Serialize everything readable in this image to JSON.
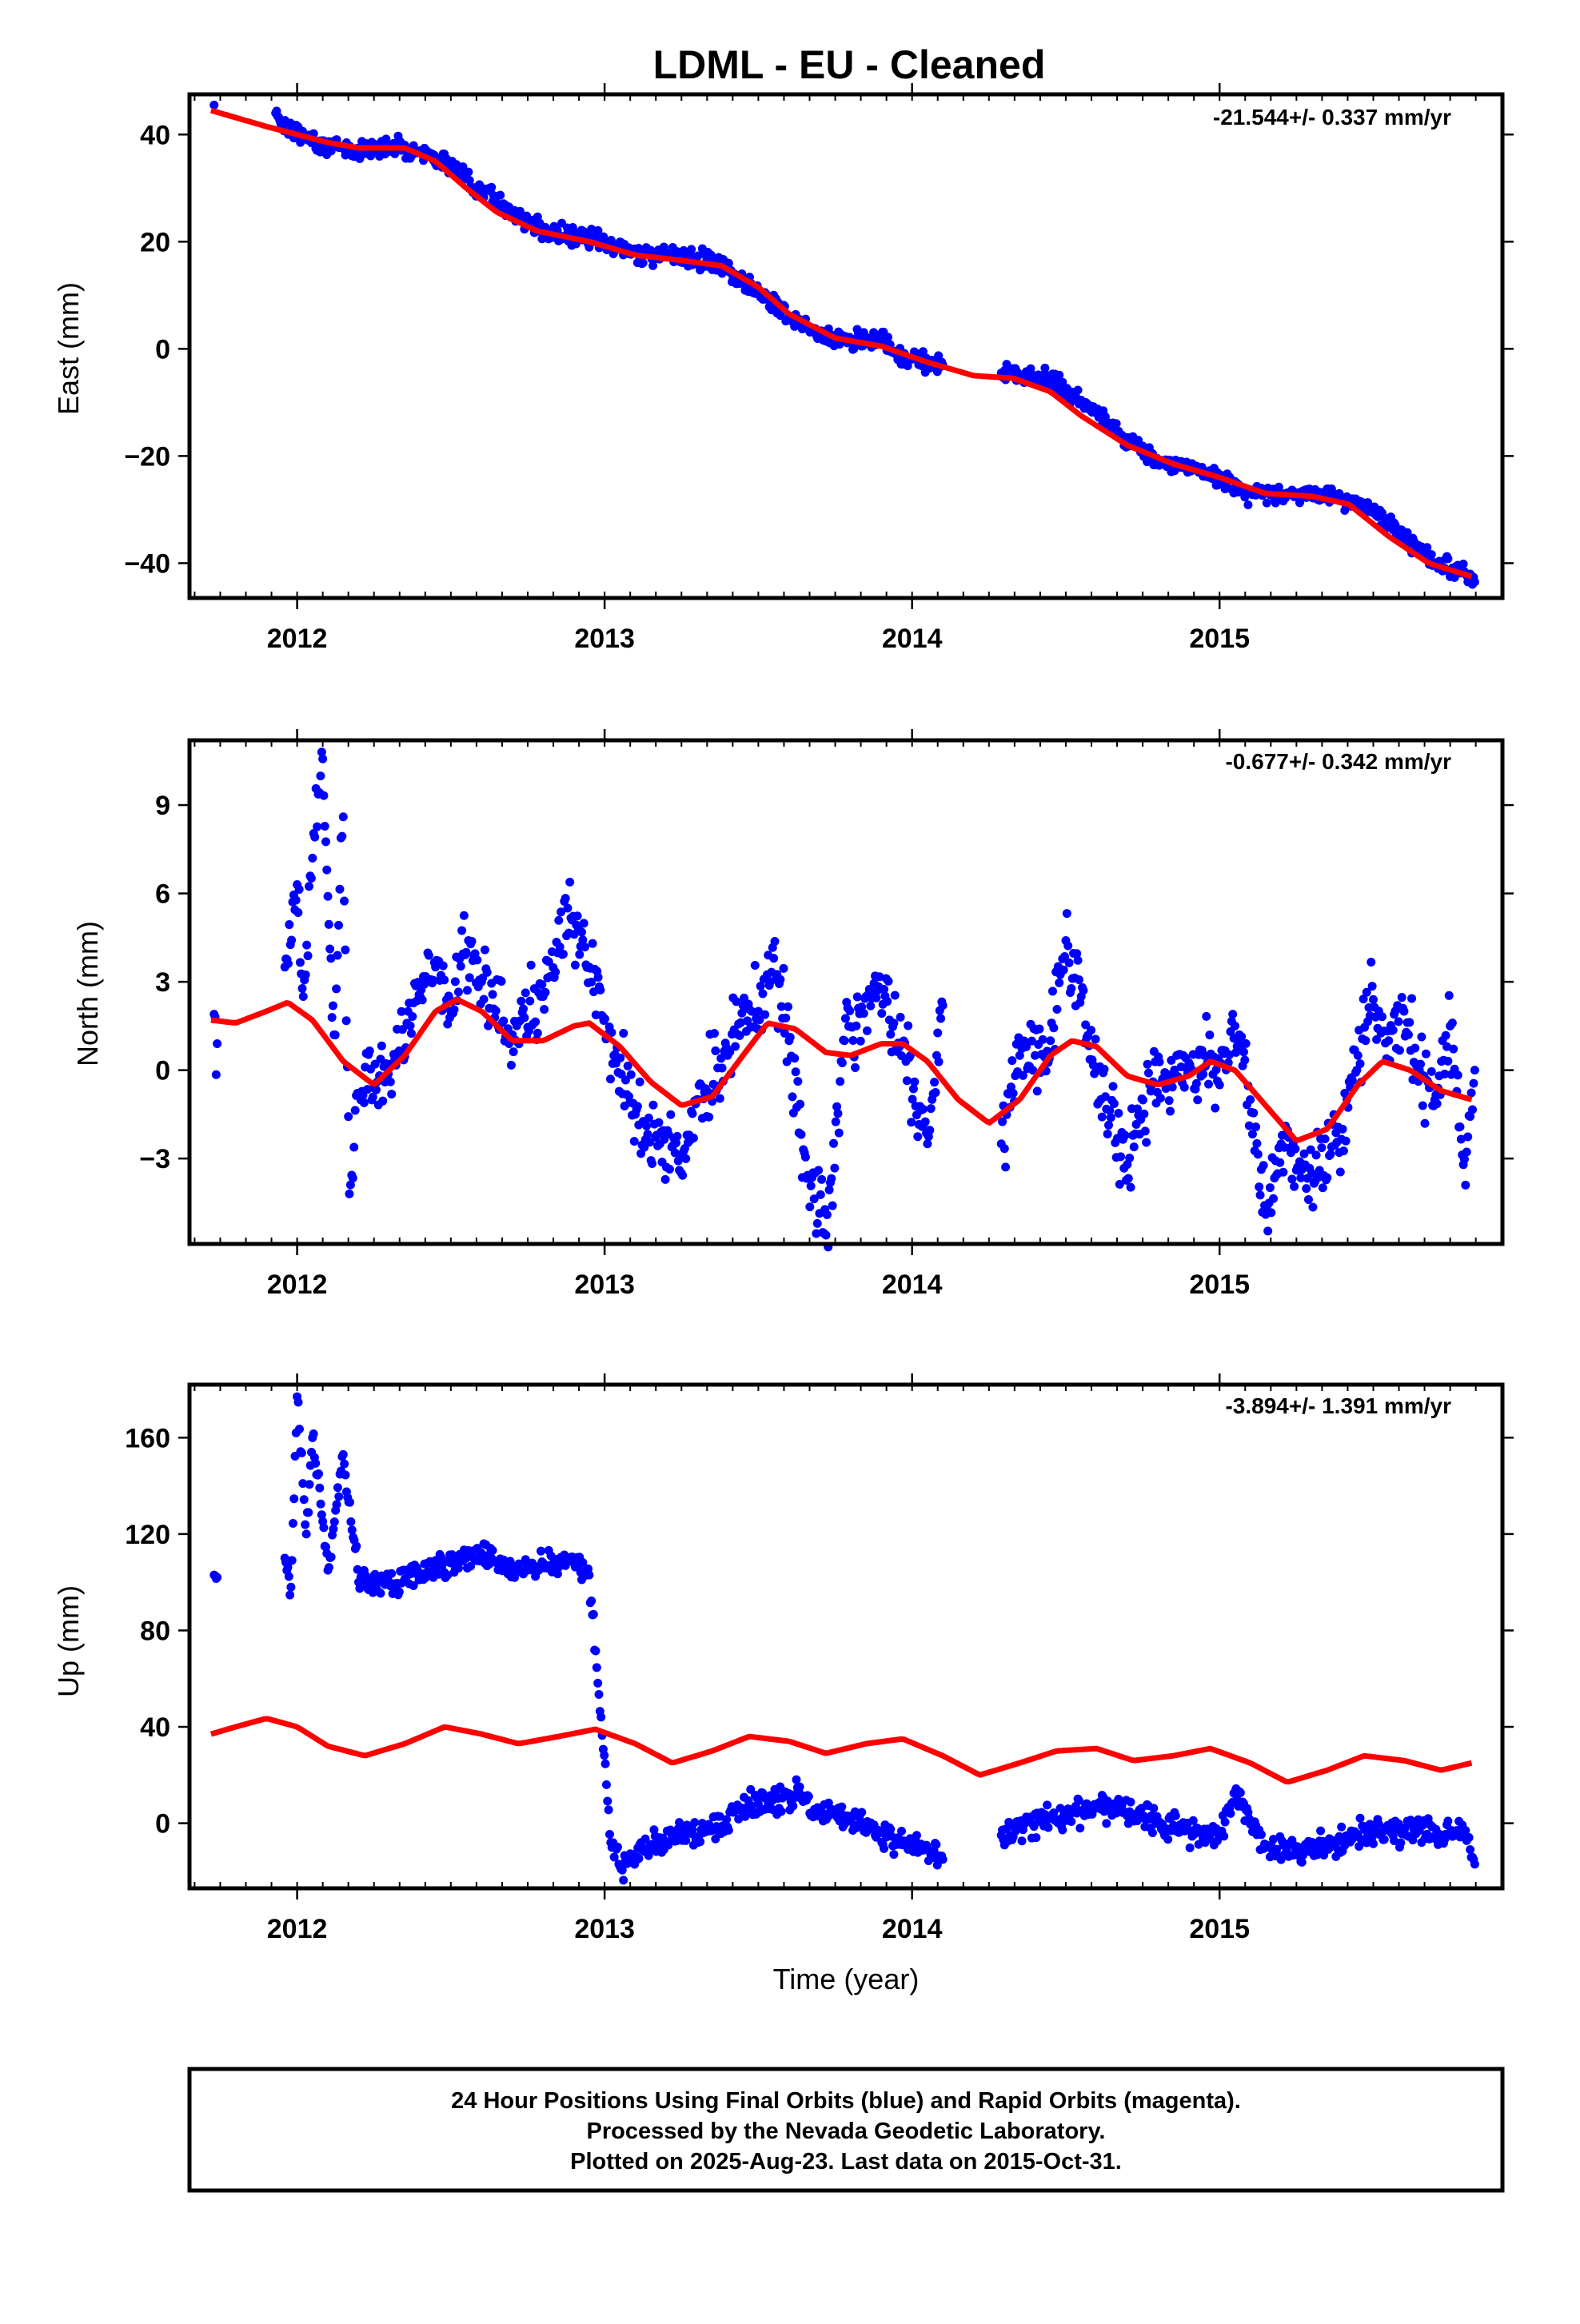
{
  "title": "LDML  - EU - Cleaned",
  "xlabel": "Time (year)",
  "footer": {
    "line1": "24 Hour Positions Using Final Orbits (blue) and Rapid Orbits (magenta).",
    "line2": "Processed by the Nevada Geodetic Laboratory.",
    "line3": "Plotted on 2025-Aug-23. Last data on 2015-Oct-31."
  },
  "colors": {
    "final_orbits": "#0000ff",
    "model": "#ff0000",
    "frame": "#000000"
  },
  "chart_data": [
    {
      "type": "scatter",
      "ylabel": "East (mm)",
      "rate": "-21.544+/- 0.337 mm/yr",
      "xlim": [
        2011.65,
        2015.92
      ],
      "ylim": [
        -46.5,
        47.5
      ],
      "xticks": [
        "2012",
        "2013",
        "2014",
        "2015"
      ],
      "yticks": [
        "40",
        "20",
        "0",
        "−20",
        "−40"
      ],
      "model": {
        "x": [
          2011.72,
          2011.9,
          2012.0,
          2012.1,
          2012.2,
          2012.35,
          2012.45,
          2012.55,
          2012.65,
          2012.78,
          2012.95,
          2013.1,
          2013.25,
          2013.38,
          2013.5,
          2013.6,
          2013.75,
          2013.9,
          2014.05,
          2014.2,
          2014.33,
          2014.45,
          2014.55,
          2014.7,
          2014.85,
          2015.0,
          2015.15,
          2015.3,
          2015.42,
          2015.55,
          2015.68,
          2015.82
        ],
        "y": [
          44.5,
          41.5,
          40.0,
          38.5,
          37.5,
          37.5,
          35.0,
          30.0,
          25.5,
          22.0,
          20.0,
          17.5,
          16.5,
          15.5,
          11.5,
          6.5,
          2.0,
          0.5,
          -2.5,
          -5.0,
          -5.5,
          -8.0,
          -12.5,
          -18.0,
          -21.5,
          -24.0,
          -27.0,
          -27.5,
          -29.0,
          -35.0,
          -40.0,
          -42.5
        ]
      },
      "series": [
        {
          "name": "Final Orbits",
          "x": [
            2011.73,
            2011.93,
            2011.95,
            2012.0,
            2012.05,
            2012.1,
            2012.2,
            2012.3,
            2012.4,
            2012.5,
            2012.6,
            2012.7,
            2012.8,
            2012.9,
            2013.0,
            2013.1,
            2013.2,
            2013.3,
            2013.4,
            2013.5,
            2013.6,
            2013.7,
            2013.8,
            2013.9,
            2013.95,
            2014.05,
            2014.1,
            2014.29,
            2014.35,
            2014.45,
            2014.5,
            2014.6,
            2014.7,
            2014.8,
            2014.9,
            2015.0,
            2015.1,
            2015.2,
            2015.3,
            2015.4,
            2015.5,
            2015.6,
            2015.7,
            2015.8,
            2015.83
          ],
          "y": [
            45.5,
            44.0,
            42.5,
            40.0,
            39.0,
            38.0,
            37.0,
            38.0,
            37.0,
            34.0,
            30.0,
            25.5,
            22.0,
            21.0,
            19.5,
            18.0,
            17.5,
            17.0,
            15.0,
            11.0,
            6.0,
            2.5,
            1.5,
            2.0,
            -1.0,
            -2.5,
            -3.0,
            -4.5,
            -5.0,
            -6.0,
            -8.0,
            -12.0,
            -17.0,
            -21.0,
            -22.0,
            -24.0,
            -27.0,
            -27.0,
            -27.0,
            -28.0,
            -30.0,
            -35.0,
            -40.0,
            -42.0,
            -43.5
          ]
        }
      ]
    },
    {
      "type": "scatter",
      "ylabel": "North (mm)",
      "rate": "-0.677+/- 0.342 mm/yr",
      "xlim": [
        2011.65,
        2015.92
      ],
      "ylim": [
        -5.9,
        11.2
      ],
      "xticks": [
        "2012",
        "2013",
        "2014",
        "2015"
      ],
      "yticks": [
        "9",
        "6",
        "3",
        "0",
        "−3"
      ],
      "model": {
        "x": [
          2011.72,
          2011.8,
          2011.9,
          2011.97,
          2012.05,
          2012.15,
          2012.25,
          2012.35,
          2012.45,
          2012.52,
          2012.6,
          2012.7,
          2012.8,
          2012.9,
          2012.95,
          2013.05,
          2013.15,
          2013.25,
          2013.35,
          2013.45,
          2013.53,
          2013.62,
          2013.72,
          2013.8,
          2013.9,
          2013.97,
          2014.05,
          2014.15,
          2014.25,
          2014.35,
          2014.45,
          2014.52,
          2014.6,
          2014.7,
          2014.8,
          2014.9,
          2014.97,
          2015.05,
          2015.15,
          2015.25,
          2015.35,
          2015.45,
          2015.53,
          2015.62,
          2015.72,
          2015.82
        ],
        "y": [
          1.7,
          1.6,
          2.0,
          2.3,
          1.7,
          0.3,
          -0.5,
          0.5,
          2.0,
          2.4,
          2.0,
          1.0,
          1.0,
          1.5,
          1.6,
          0.8,
          -0.4,
          -1.2,
          -0.9,
          0.5,
          1.6,
          1.4,
          0.6,
          0.5,
          0.9,
          0.9,
          0.3,
          -1.0,
          -1.8,
          -1.0,
          0.5,
          1.0,
          0.8,
          -0.2,
          -0.5,
          -0.2,
          0.3,
          0.0,
          -1.2,
          -2.4,
          -2.0,
          -0.5,
          0.3,
          0.0,
          -0.7,
          -1.0
        ]
      },
      "series": [
        {
          "name": "Final Orbits",
          "x": [
            2011.73,
            2011.74,
            2011.96,
            2012.0,
            2012.02,
            2012.05,
            2012.08,
            2012.1,
            2012.12,
            2012.15,
            2012.17,
            2012.2,
            2012.3,
            2012.4,
            2012.45,
            2012.5,
            2012.55,
            2012.6,
            2012.7,
            2012.8,
            2012.88,
            2012.95,
            2013.03,
            2013.1,
            2013.18,
            2013.25,
            2013.3,
            2013.4,
            2013.45,
            2013.5,
            2013.55,
            2013.6,
            2013.65,
            2013.72,
            2013.78,
            2013.85,
            2013.88,
            2013.98,
            2014.05,
            2014.08,
            2014.1,
            2014.29,
            2014.35,
            2014.45,
            2014.5,
            2014.55,
            2014.6,
            2014.7,
            2014.78,
            2014.85,
            2014.95,
            2015.0,
            2015.05,
            2015.1,
            2015.15,
            2015.2,
            2015.3,
            2015.4,
            2015.45,
            2015.5,
            2015.55,
            2015.6,
            2015.65,
            2015.7,
            2015.75,
            2015.8,
            2015.83
          ],
          "y": [
            1.9,
            0.9,
            3.5,
            6.3,
            2.5,
            7.2,
            10.8,
            5.9,
            1.2,
            8.6,
            -4.2,
            -0.8,
            0.2,
            2.5,
            3.5,
            2.0,
            4.0,
            3.0,
            1.2,
            2.5,
            5.5,
            3.5,
            0.5,
            -1.5,
            -2.5,
            -3.5,
            -1.0,
            0.5,
            2.2,
            2.0,
            3.8,
            1.0,
            -2.8,
            -5.6,
            1.0,
            2.5,
            3.2,
            0.3,
            -2.5,
            0.5,
            2.2,
            -2.5,
            0.5,
            1.0,
            4.4,
            2.5,
            0.0,
            -3.2,
            -0.5,
            -0.3,
            0.5,
            -0.5,
            1.5,
            -1.0,
            -4.9,
            -2.5,
            -3.5,
            -2.0,
            0.5,
            2.4,
            1.0,
            2.0,
            0.0,
            -1.0,
            1.5,
            -3.9,
            0.0
          ]
        }
      ]
    },
    {
      "type": "scatter",
      "ylabel": "Up (mm)",
      "rate": "-3.894+/- 1.391 mm/yr",
      "xlim": [
        2011.65,
        2015.92
      ],
      "ylim": [
        -27,
        182
      ],
      "xticks": [
        "2012",
        "2013",
        "2014",
        "2015"
      ],
      "yticks": [
        "160",
        "120",
        "80",
        "40",
        "0"
      ],
      "model": {
        "x": [
          2011.72,
          2011.8,
          2011.9,
          2012.0,
          2012.1,
          2012.22,
          2012.35,
          2012.48,
          2012.6,
          2012.72,
          2012.85,
          2012.97,
          2013.1,
          2013.22,
          2013.35,
          2013.47,
          2013.6,
          2013.72,
          2013.85,
          2013.97,
          2014.1,
          2014.22,
          2014.35,
          2014.47,
          2014.6,
          2014.72,
          2014.85,
          2014.97,
          2015.1,
          2015.22,
          2015.35,
          2015.47,
          2015.6,
          2015.72,
          2015.82
        ],
        "y": [
          37,
          40,
          43.5,
          40,
          32,
          28,
          33,
          40,
          37,
          33,
          36,
          39,
          33,
          25,
          30,
          36,
          34,
          29,
          33,
          35,
          28,
          20,
          25,
          30,
          31,
          26,
          28,
          31,
          25,
          17,
          22,
          28,
          26,
          22,
          25
        ]
      },
      "series": [
        {
          "name": "Final Orbits",
          "x": [
            2011.73,
            2011.74,
            2011.96,
            2011.98,
            2012.0,
            2012.03,
            2012.05,
            2012.07,
            2012.08,
            2012.1,
            2012.15,
            2012.2,
            2012.3,
            2012.4,
            2012.5,
            2012.55,
            2012.6,
            2012.65,
            2012.75,
            2012.8,
            2012.88,
            2012.95,
            2013.02,
            2013.05,
            2013.08,
            2013.15,
            2013.25,
            2013.35,
            2013.45,
            2013.5,
            2013.55,
            2013.62,
            2013.7,
            2013.8,
            2013.88,
            2013.98,
            2014.05,
            2014.1,
            2014.29,
            2014.35,
            2014.45,
            2014.55,
            2014.6,
            2014.7,
            2014.8,
            2014.9,
            2015.0,
            2015.05,
            2015.15,
            2015.25,
            2015.35,
            2015.45,
            2015.55,
            2015.65,
            2015.75,
            2015.8,
            2015.83
          ],
          "y": [
            103,
            102,
            110,
            98,
            177,
            120,
            160,
            145,
            128,
            105,
            153,
            100,
            100,
            103,
            108,
            110,
            112,
            108,
            105,
            108,
            110,
            103,
            -8,
            -18,
            -15,
            -10,
            -5,
            -3,
            5,
            8,
            10,
            12,
            5,
            3,
            -5,
            -8,
            -10,
            -15,
            -5,
            -2,
            3,
            5,
            8,
            3,
            0,
            -3,
            -5,
            13,
            -10,
            -12,
            -10,
            -5,
            -3,
            -3,
            -5,
            -3,
            -17
          ]
        }
      ]
    }
  ]
}
